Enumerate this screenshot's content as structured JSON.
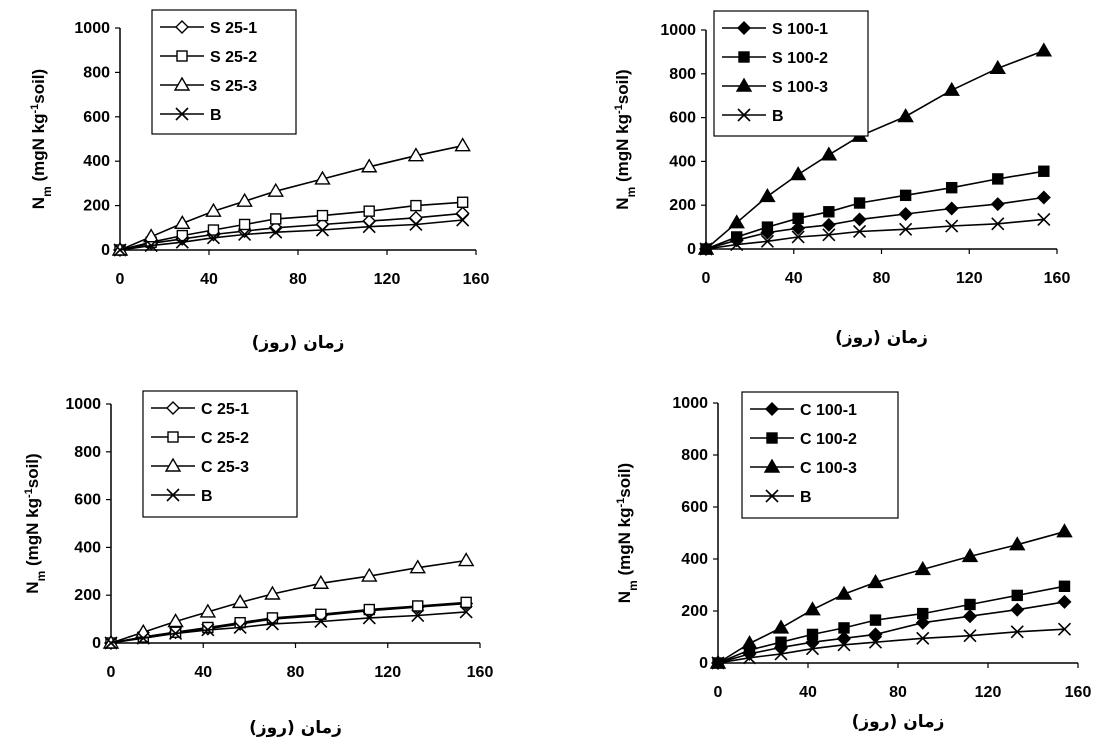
{
  "chart_data": [
    {
      "type": "line",
      "ylabel_main": "N",
      "ylabel_sub": "m",
      "ylabel_rest1": " (mgN kg",
      "ylabel_sup": "-1",
      "ylabel_rest2": "soil)",
      "xlabel": "زمان (روز)",
      "xlim": [
        0,
        160
      ],
      "ylim": [
        0,
        1000
      ],
      "xticks": [
        0,
        40,
        80,
        120,
        160
      ],
      "yticks": [
        0,
        200,
        400,
        600,
        800,
        1000
      ],
      "legend_position": "top-left",
      "series": [
        {
          "name": "S 25-1",
          "marker": "diamond",
          "filled": false,
          "x": [
            0,
            14,
            28,
            42,
            56,
            70,
            91,
            112,
            133,
            154
          ],
          "y": [
            0,
            30,
            50,
            70,
            85,
            100,
            115,
            130,
            145,
            165
          ]
        },
        {
          "name": "S 25-2",
          "marker": "square",
          "filled": false,
          "x": [
            0,
            14,
            28,
            42,
            56,
            70,
            91,
            112,
            133,
            154
          ],
          "y": [
            0,
            35,
            65,
            90,
            115,
            140,
            155,
            175,
            200,
            215
          ]
        },
        {
          "name": "S 25-3",
          "marker": "triangle",
          "filled": false,
          "x": [
            0,
            14,
            28,
            42,
            56,
            70,
            91,
            112,
            133,
            154
          ],
          "y": [
            0,
            60,
            120,
            175,
            220,
            265,
            320,
            375,
            425,
            470
          ]
        },
        {
          "name": "B",
          "marker": "x",
          "filled": false,
          "x": [
            0,
            14,
            28,
            42,
            56,
            70,
            91,
            112,
            133,
            154
          ],
          "y": [
            0,
            20,
            35,
            55,
            70,
            80,
            90,
            105,
            115,
            135
          ]
        }
      ]
    },
    {
      "type": "line",
      "ylabel_main": "N",
      "ylabel_sub": "m",
      "ylabel_rest1": " (mgN kg",
      "ylabel_sup": "-1",
      "ylabel_rest2": "soil)",
      "xlabel": "زمان (روز)",
      "xlim": [
        0,
        160
      ],
      "ylim": [
        0,
        1000
      ],
      "xticks": [
        0,
        40,
        80,
        120,
        160
      ],
      "yticks": [
        0,
        200,
        400,
        600,
        800,
        1000
      ],
      "legend_position": "top-left",
      "series": [
        {
          "name": "S 100-1",
          "marker": "diamond",
          "filled": true,
          "x": [
            0,
            14,
            28,
            42,
            56,
            70,
            91,
            112,
            133,
            154
          ],
          "y": [
            0,
            40,
            75,
            95,
            110,
            135,
            160,
            185,
            205,
            235
          ]
        },
        {
          "name": "S 100-2",
          "marker": "square",
          "filled": true,
          "x": [
            0,
            14,
            28,
            42,
            56,
            70,
            91,
            112,
            133,
            154
          ],
          "y": [
            0,
            55,
            100,
            140,
            170,
            210,
            245,
            280,
            320,
            355
          ]
        },
        {
          "name": "S 100-3",
          "marker": "triangle",
          "filled": true,
          "x": [
            0,
            14,
            28,
            42,
            56,
            70,
            91,
            112,
            133,
            154
          ],
          "y": [
            0,
            120,
            240,
            340,
            430,
            515,
            605,
            725,
            825,
            905
          ]
        },
        {
          "name": "B",
          "marker": "x",
          "filled": false,
          "x": [
            0,
            14,
            28,
            42,
            56,
            70,
            91,
            112,
            133,
            154
          ],
          "y": [
            0,
            20,
            35,
            55,
            65,
            80,
            90,
            105,
            115,
            135
          ]
        }
      ]
    },
    {
      "type": "line",
      "ylabel_main": "N",
      "ylabel_sub": "m",
      "ylabel_rest1": " (mgN kg",
      "ylabel_sup": "-1",
      "ylabel_rest2": "soil)",
      "xlabel": "زمان (روز)",
      "xlim": [
        0,
        160
      ],
      "ylim": [
        0,
        1000
      ],
      "xticks": [
        0,
        40,
        80,
        120,
        160
      ],
      "yticks": [
        0,
        200,
        400,
        600,
        800,
        1000
      ],
      "legend_position": "top-left",
      "series": [
        {
          "name": "C 25-1",
          "marker": "diamond",
          "filled": false,
          "x": [
            0,
            14,
            28,
            42,
            56,
            70,
            91,
            112,
            133,
            154
          ],
          "y": [
            0,
            25,
            45,
            60,
            80,
            100,
            115,
            135,
            150,
            165
          ]
        },
        {
          "name": "C 25-2",
          "marker": "square",
          "filled": false,
          "x": [
            0,
            14,
            28,
            42,
            56,
            70,
            91,
            112,
            133,
            154
          ],
          "y": [
            0,
            25,
            45,
            65,
            85,
            105,
            120,
            140,
            155,
            170
          ]
        },
        {
          "name": "C 25-3",
          "marker": "triangle",
          "filled": false,
          "x": [
            0,
            14,
            28,
            42,
            56,
            70,
            91,
            112,
            133,
            154
          ],
          "y": [
            0,
            45,
            90,
            130,
            170,
            205,
            250,
            280,
            315,
            345
          ]
        },
        {
          "name": "B",
          "marker": "x",
          "filled": false,
          "x": [
            0,
            14,
            28,
            42,
            56,
            70,
            91,
            112,
            133,
            154
          ],
          "y": [
            0,
            20,
            40,
            55,
            65,
            80,
            90,
            105,
            115,
            130
          ]
        }
      ]
    },
    {
      "type": "line",
      "ylabel_main": "N",
      "ylabel_sub": "m",
      "ylabel_rest1": " (mgN kg",
      "ylabel_sup": "-1",
      "ylabel_rest2": "soil)",
      "xlabel": "زمان (روز)",
      "xlim": [
        0,
        160
      ],
      "ylim": [
        0,
        1000
      ],
      "xticks": [
        0,
        40,
        80,
        120,
        160
      ],
      "yticks": [
        0,
        200,
        400,
        600,
        800,
        1000
      ],
      "legend_position": "top-left",
      "series": [
        {
          "name": "C 100-1",
          "marker": "diamond",
          "filled": true,
          "x": [
            0,
            14,
            28,
            42,
            56,
            70,
            91,
            112,
            133,
            154
          ],
          "y": [
            0,
            35,
            60,
            80,
            95,
            110,
            155,
            180,
            205,
            235
          ]
        },
        {
          "name": "C 100-2",
          "marker": "square",
          "filled": true,
          "x": [
            0,
            14,
            28,
            42,
            56,
            70,
            91,
            112,
            133,
            154
          ],
          "y": [
            0,
            50,
            80,
            110,
            135,
            165,
            190,
            225,
            260,
            295
          ]
        },
        {
          "name": "C 100-3",
          "marker": "triangle",
          "filled": true,
          "x": [
            0,
            14,
            28,
            42,
            56,
            70,
            91,
            112,
            133,
            154
          ],
          "y": [
            0,
            75,
            135,
            205,
            265,
            310,
            360,
            410,
            455,
            505
          ]
        },
        {
          "name": "B",
          "marker": "x",
          "filled": false,
          "x": [
            0,
            14,
            28,
            42,
            56,
            70,
            91,
            112,
            133,
            154
          ],
          "y": [
            0,
            20,
            35,
            55,
            70,
            80,
            95,
            105,
            120,
            130
          ]
        }
      ]
    }
  ]
}
